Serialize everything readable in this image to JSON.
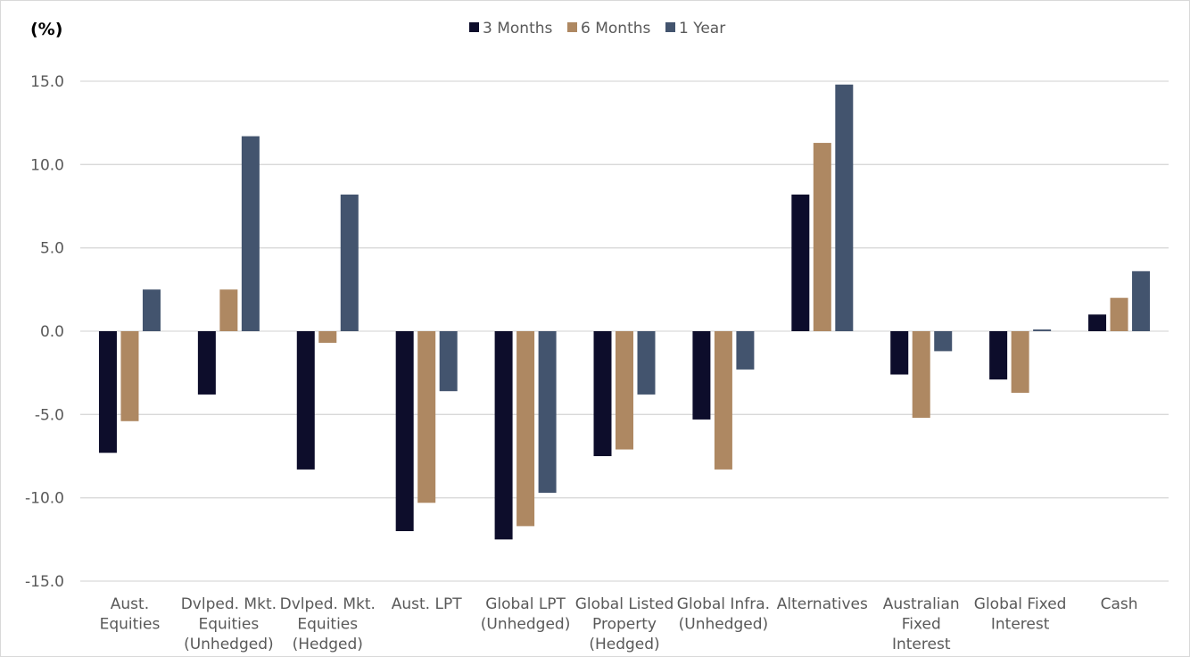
{
  "chart_data": {
    "type": "bar",
    "ylabel": "(%)",
    "ylim": [
      -15,
      15
    ],
    "yticks": [
      15,
      10,
      5,
      0,
      -5,
      -10,
      -15
    ],
    "ytick_labels": [
      "15.0",
      "10.0",
      "5.0",
      "0.0",
      "-5.0",
      "-10.0",
      "-15.0"
    ],
    "grid": true,
    "legend_position": "top-center",
    "categories": [
      [
        "Aust.",
        "Equities"
      ],
      [
        "Dvlped. Mkt.",
        "Equities",
        "(Unhedged)"
      ],
      [
        "Dvlped. Mkt.",
        "Equities",
        "(Hedged)"
      ],
      [
        "Aust. LPT"
      ],
      [
        "Global LPT",
        "(Unhedged)"
      ],
      [
        "Global Listed",
        "Property",
        "(Hedged)"
      ],
      [
        "Global Infra.",
        "(Unhedged)"
      ],
      [
        "Alternatives"
      ],
      [
        "Australian",
        "Fixed",
        "Interest"
      ],
      [
        "Global Fixed",
        "Interest"
      ],
      [
        "Cash"
      ]
    ],
    "series": [
      {
        "name": "3 Months",
        "color": "#0d0d2b",
        "values": [
          -7.3,
          -3.8,
          -8.3,
          -12.0,
          -12.5,
          -7.5,
          -5.3,
          8.2,
          -2.6,
          -2.9,
          1.0
        ]
      },
      {
        "name": "6 Months",
        "color": "#ae8862",
        "values": [
          -5.4,
          2.5,
          -0.7,
          -10.3,
          -11.7,
          -7.1,
          -8.3,
          11.3,
          -5.2,
          -3.7,
          2.0
        ]
      },
      {
        "name": "1 Year",
        "color": "#43546e",
        "values": [
          2.5,
          11.7,
          8.2,
          -3.6,
          -9.7,
          -3.8,
          -2.3,
          14.8,
          -1.2,
          0.1,
          3.6
        ]
      }
    ]
  }
}
